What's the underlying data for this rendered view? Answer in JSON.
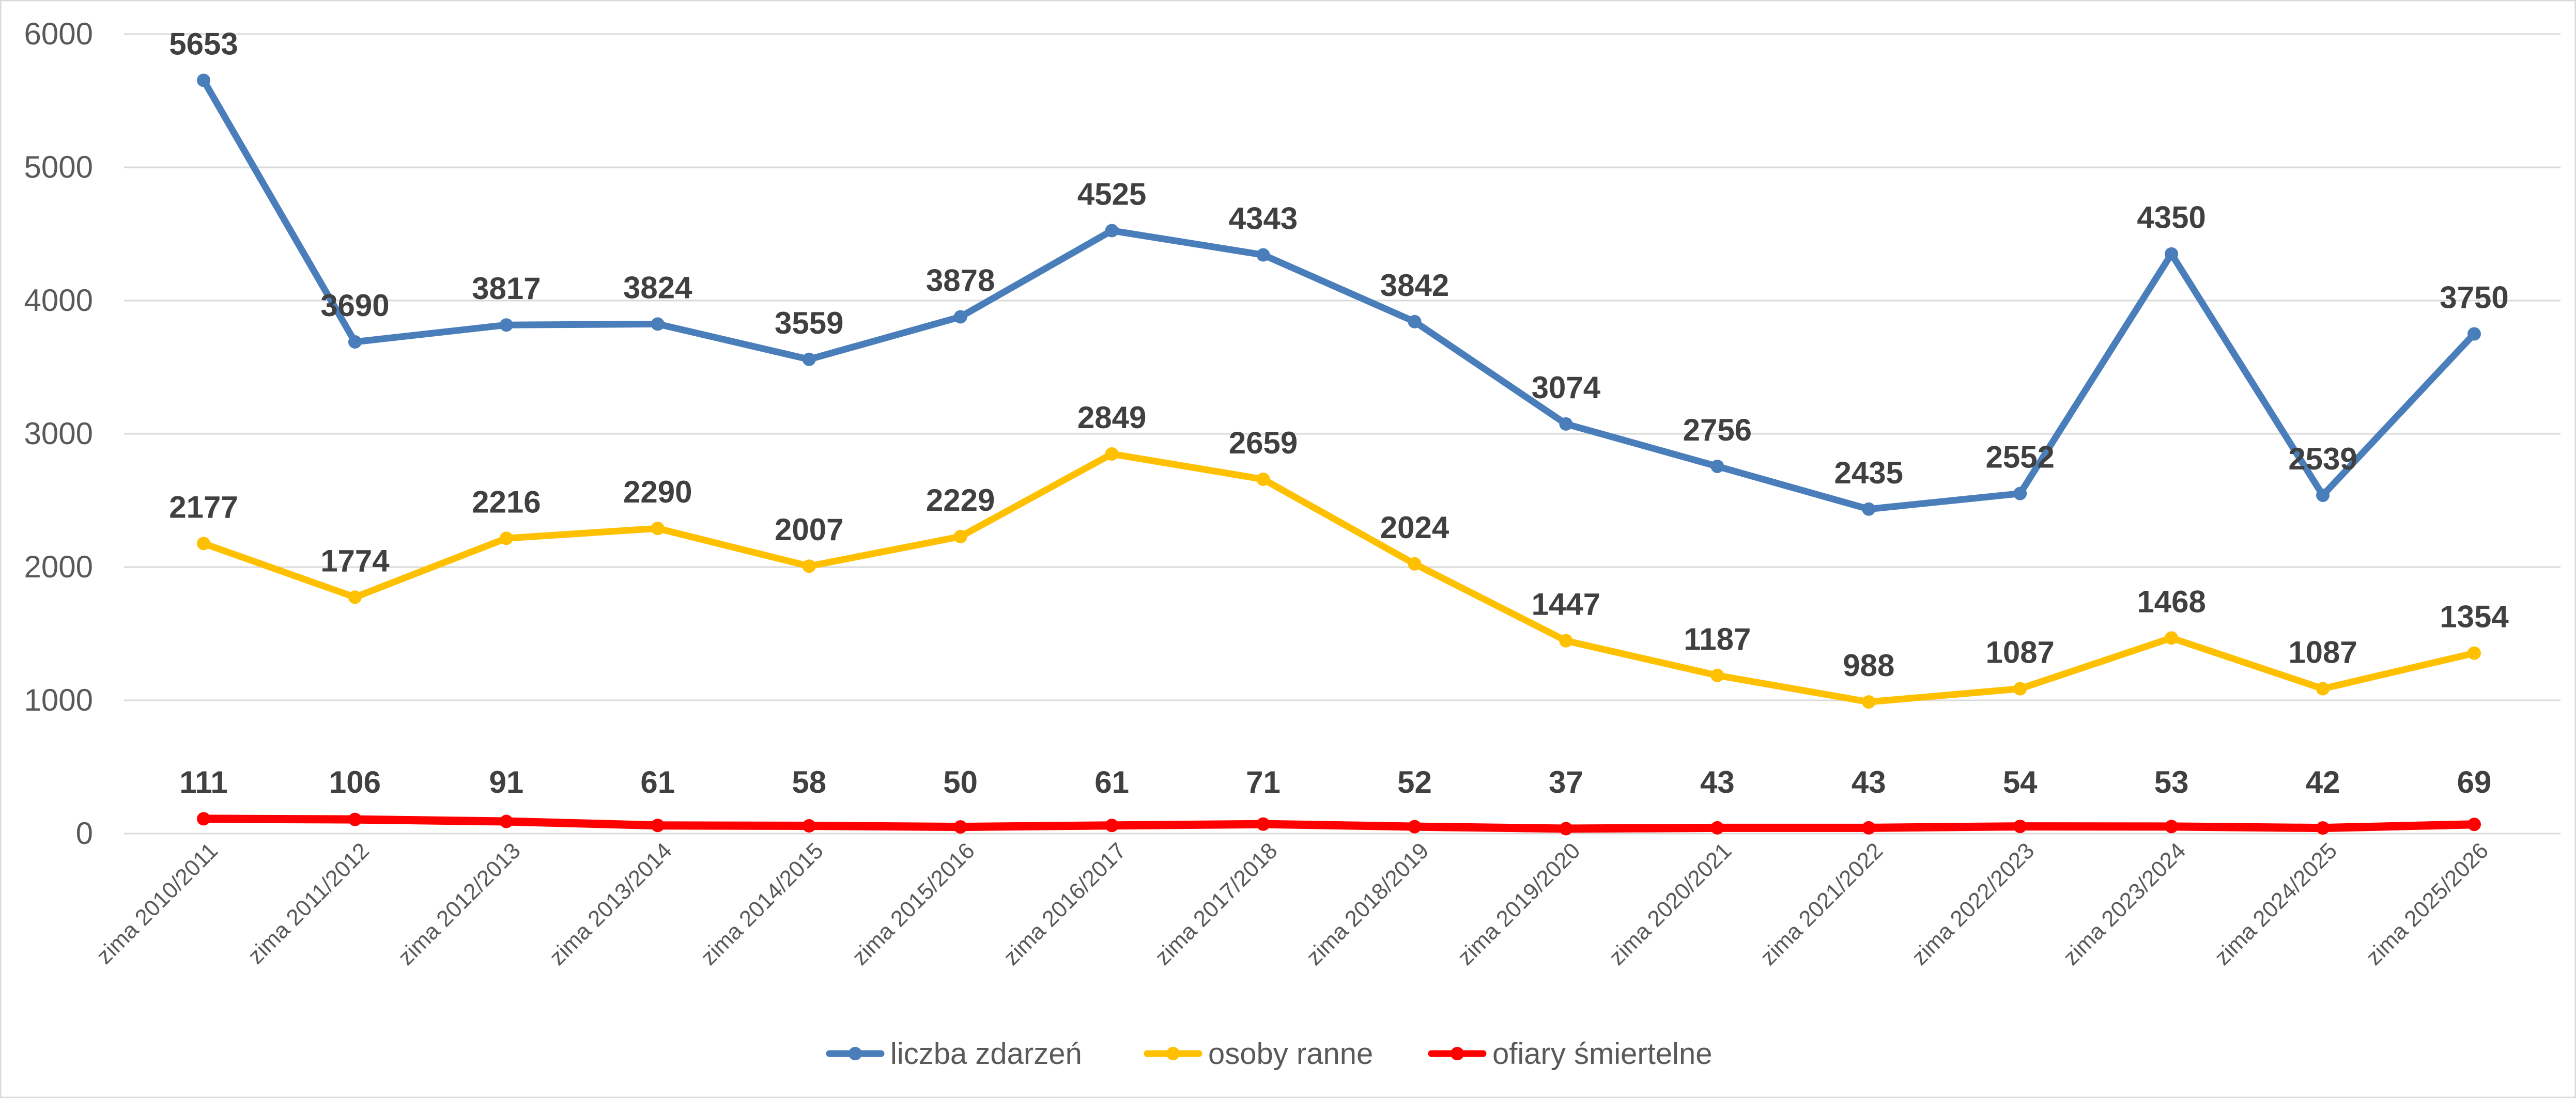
{
  "chart_data": {
    "type": "line",
    "title": "",
    "xlabel": "",
    "ylabel": "",
    "ylim": [
      0,
      6000
    ],
    "y_ticks": [
      "0",
      "1000",
      "2000",
      "3000",
      "4000",
      "5000",
      "6000"
    ],
    "grid": true,
    "legend_position": "bottom",
    "categories": [
      "zima 2010/2011",
      "zima 2011/2012",
      "zima 2012/2013",
      "zima 2013/2014",
      "zima 2014/2015",
      "zima 2015/2016",
      "zima 2016/2017",
      "zima 2017/2018",
      "zima 2018/2019",
      "zima 2019/2020",
      "zima 2020/2021",
      "zima 2021/2022",
      "zima 2022/2023",
      "zima 2023/2024",
      "zima 2024/2025",
      "zima 2025/2026"
    ],
    "series": [
      {
        "name": "liczba zdarzeń",
        "color": "#4a7ebb",
        "values": [
          5653,
          3690,
          3817,
          3824,
          3559,
          3878,
          4525,
          4343,
          3842,
          3074,
          2756,
          2435,
          2552,
          4350,
          2539,
          3750
        ]
      },
      {
        "name": "osoby ranne",
        "color": "#ffc000",
        "values": [
          2177,
          1774,
          2216,
          2290,
          2007,
          2229,
          2849,
          2659,
          2024,
          1447,
          1187,
          988,
          1087,
          1468,
          1087,
          1354
        ]
      },
      {
        "name": "ofiary śmiertelne",
        "color": "#ff0000",
        "values": [
          111,
          106,
          91,
          61,
          58,
          50,
          61,
          71,
          52,
          37,
          43,
          43,
          54,
          53,
          42,
          69
        ]
      }
    ]
  },
  "colors": {
    "grid": "#d9d9d9",
    "axis_text": "#595959",
    "data_label": "#404040",
    "border": "#d9d9d9"
  }
}
